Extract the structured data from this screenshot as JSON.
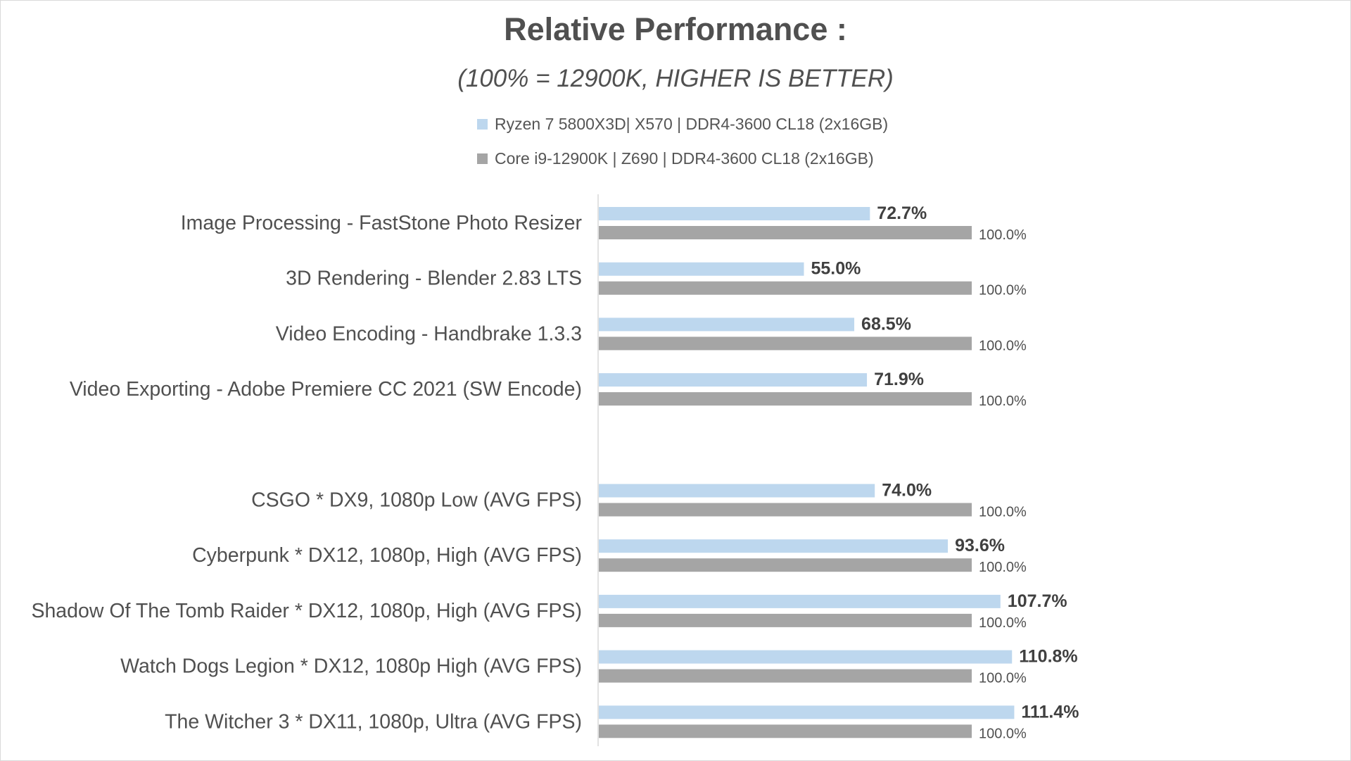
{
  "chart_data": {
    "type": "bar",
    "orientation": "horizontal",
    "title": "Relative Performance :",
    "subtitle": "(100% = 12900K, HIGHER IS BETTER)",
    "xlabel": "",
    "ylabel": "",
    "xlim": [
      0,
      120
    ],
    "grid": false,
    "legend_position": "top",
    "categories": [
      "Image Processing - FastStone Photo Resizer",
      "3D Rendering - Blender 2.83 LTS",
      "Video Encoding - Handbrake 1.3.3",
      "Video Exporting - Adobe Premiere CC 2021 (SW Encode)",
      "",
      "CSGO * DX9, 1080p Low (AVG FPS)",
      "Cyberpunk * DX12, 1080p, High (AVG FPS)",
      "Shadow Of The Tomb Raider * DX12, 1080p, High (AVG FPS)",
      "Watch Dogs Legion * DX12, 1080p High (AVG FPS)",
      "The Witcher 3 * DX11, 1080p, Ultra (AVG FPS)"
    ],
    "series": [
      {
        "name": "Ryzen 7 5800X3D| X570 | DDR4-3600 CL18 (2x16GB)",
        "color": "#bdd7ee",
        "values": [
          72.7,
          55.0,
          68.5,
          71.9,
          null,
          74.0,
          93.6,
          107.7,
          110.8,
          111.4
        ],
        "labels": [
          "72.7%",
          "55.0%",
          "68.5%",
          "71.9%",
          "",
          "74.0%",
          "93.6%",
          "107.7%",
          "110.8%",
          "111.4%"
        ]
      },
      {
        "name": "Core i9-12900K | Z690 | DDR4-3600 CL18 (2x16GB)",
        "color": "#a5a5a5",
        "values": [
          100,
          100,
          100,
          100,
          null,
          100,
          100,
          100,
          100,
          100
        ],
        "labels": [
          "100.0%",
          "100.0%",
          "100.0%",
          "100.0%",
          "",
          "100.0%",
          "100.0%",
          "100.0%",
          "100.0%",
          "100.0%"
        ]
      }
    ]
  }
}
